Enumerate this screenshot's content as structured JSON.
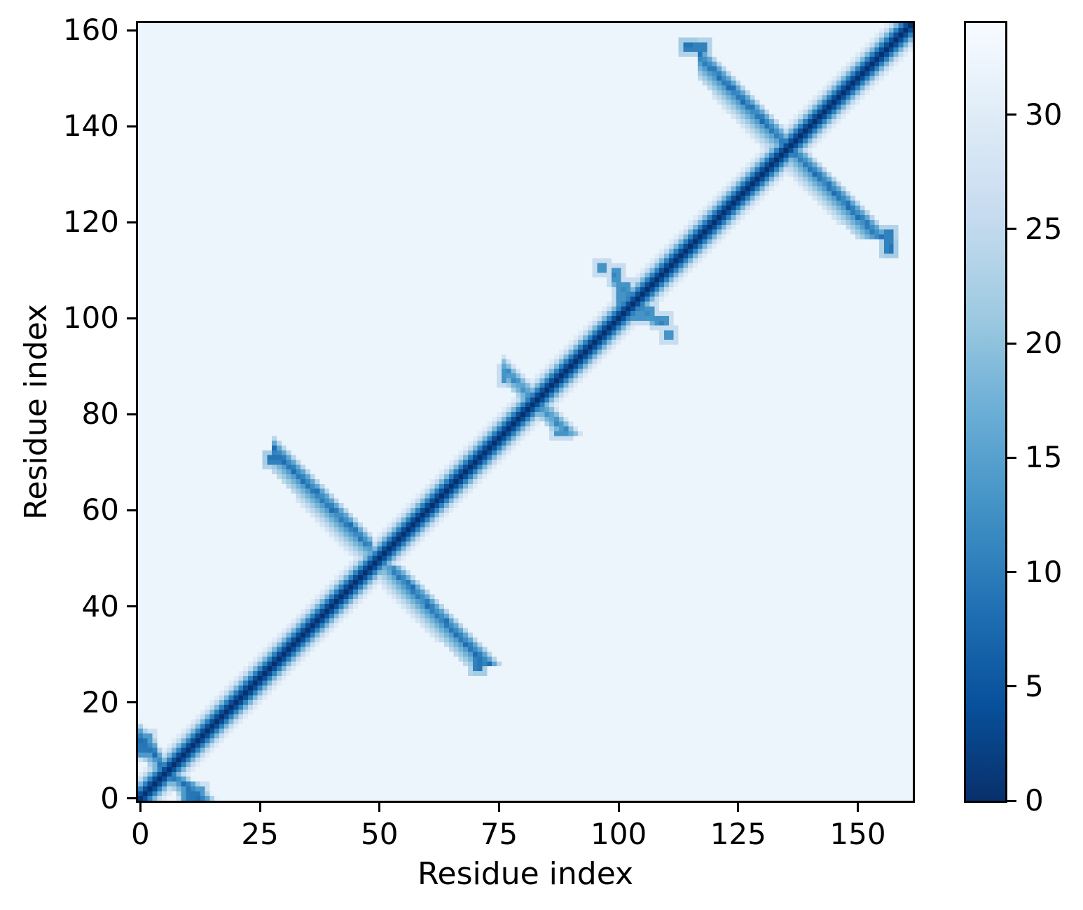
{
  "chart_data": {
    "type": "heatmap",
    "xlabel": "Residue index",
    "ylabel": "Residue index",
    "x_ticks": [
      0,
      25,
      50,
      75,
      100,
      125,
      150
    ],
    "y_ticks": [
      0,
      20,
      40,
      60,
      80,
      100,
      120,
      140,
      160
    ],
    "extent": [
      -0.5,
      161.5
    ],
    "grid": false,
    "colorbar": {
      "vmin": 0,
      "vmax": 34,
      "ticks": [
        0,
        5,
        10,
        15,
        20,
        25,
        30
      ]
    },
    "colormap": {
      "name": "Blues_r",
      "stops_dark_to_light": [
        "#08306b",
        "#08519c",
        "#2171b5",
        "#4292c6",
        "#6baed6",
        "#9ecae1",
        "#c6dbef",
        "#deebf7",
        "#f7fbff"
      ]
    },
    "matrix_model": {
      "n": 162,
      "background_value": 32.3,
      "vmax": 34,
      "diagonal_values": [
        0,
        4,
        10.5,
        18.5,
        25.5,
        30
      ],
      "arms": [
        {
          "sum": 12,
          "i0": 0,
          "i1": 4,
          "v0": 8.5,
          "amp": 1.2,
          "seed": 3,
          "fan_base": 2.5,
          "fan_amp": 1,
          "fan_slope": 4.5,
          "outer_halo": true,
          "taper": 0
        },
        {
          "sum": 100,
          "i0": 28,
          "i1": 48,
          "v0": 9,
          "amp": 0.9,
          "seed": 11,
          "fan_base": 4,
          "fan_amp": 1.5,
          "fan_slope": 3.4,
          "outer_halo": false,
          "taper": 2
        },
        {
          "sum": 165,
          "i0": 76,
          "i1": 82,
          "v0": 12.5,
          "amp": 0.6,
          "seed": 23,
          "fan_base": 1.2,
          "fan_amp": 1,
          "fan_slope": 5,
          "outer_halo": false,
          "taper": 0
        },
        {
          "sum": 207,
          "i0": 99,
          "i1": 102,
          "v0": 12,
          "amp": 1.2,
          "seed": 31,
          "fan_base": 1.2,
          "fan_amp": 1,
          "fan_slope": 5,
          "outer_halo": false,
          "taper": 0
        },
        {
          "sum": 271,
          "i0": 117,
          "i1": 135,
          "v0": 9,
          "amp": 0.9,
          "seed": 41,
          "fan_base": 4,
          "fan_amp": 1.5,
          "fan_slope": 3.4,
          "outer_halo": false,
          "taper": 2
        }
      ],
      "patches": [
        {
          "i0": 0,
          "i1": 1,
          "j0": 11,
          "j1": 12,
          "v": 9
        },
        {
          "i0": 9,
          "i1": 13,
          "j0": 0,
          "j1": 2,
          "v": 14
        },
        {
          "i0": 10,
          "i1": 12,
          "j0": 0,
          "j1": 1,
          "v": 9.5
        },
        {
          "i0": 27,
          "i1": 30,
          "j0": 70,
          "j1": 71,
          "v": 10.5
        },
        {
          "i0": 27,
          "i1": 28,
          "j0": 71,
          "j1": 71,
          "v": 9
        },
        {
          "i0": 76,
          "i1": 76,
          "j0": 87,
          "j1": 89,
          "v": 13
        },
        {
          "i0": 96,
          "i1": 97,
          "j0": 110,
          "j1": 111,
          "v": 13
        },
        {
          "i0": 99,
          "i1": 100,
          "j0": 108,
          "j1": 110,
          "v": 13
        },
        {
          "i0": 100,
          "i1": 102,
          "j0": 103,
          "j1": 107,
          "v": 13
        },
        {
          "i0": 114,
          "i1": 118,
          "j0": 156,
          "j1": 157,
          "v": 10.5
        },
        {
          "i0": 114,
          "i1": 115,
          "j0": 157,
          "j1": 157,
          "v": 9
        }
      ]
    }
  }
}
